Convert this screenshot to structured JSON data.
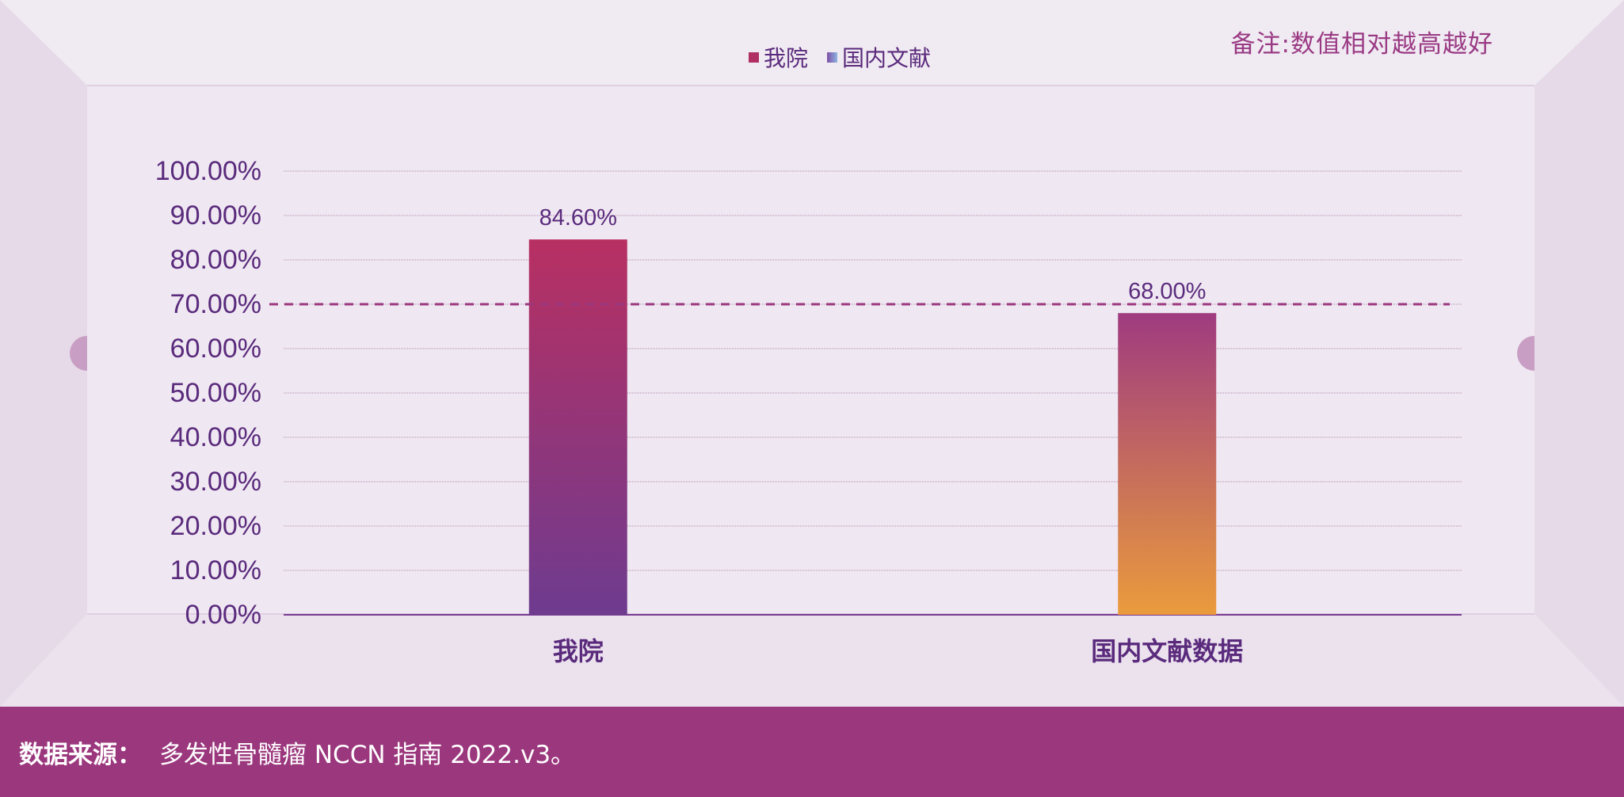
{
  "note": "备注:数值相对越高越好",
  "legend": [
    {
      "label": "我院",
      "color": "#b03064"
    },
    {
      "label": "国内文献",
      "color": "#7c4fa8"
    }
  ],
  "footer": {
    "label": "数据来源：",
    "text": "多发性骨髓瘤 NCCN 指南 2022.v3。"
  },
  "colors": {
    "accent": "#9b377d",
    "text": "#5a2a7c",
    "bar1_top": "#b83062",
    "bar1_bottom": "#6e3b8f",
    "bar2_top": "#9f3b80",
    "bar2_bottom": "#ea9b3c"
  },
  "chart_data": {
    "type": "bar",
    "categories": [
      "我院",
      "国内文献数据"
    ],
    "series": [
      {
        "name": "我院",
        "values": [
          84.6,
          null
        ]
      },
      {
        "name": "国内文献",
        "values": [
          null,
          68.0
        ]
      }
    ],
    "data_labels": [
      "84.60%",
      "68.00%"
    ],
    "ylim": [
      0,
      100
    ],
    "yticks": [
      "0.00%",
      "10.00%",
      "20.00%",
      "30.00%",
      "40.00%",
      "50.00%",
      "60.00%",
      "70.00%",
      "80.00%",
      "90.00%",
      "100.00%"
    ],
    "reference_line": 70,
    "grid": true,
    "legend_position": "top-center"
  }
}
